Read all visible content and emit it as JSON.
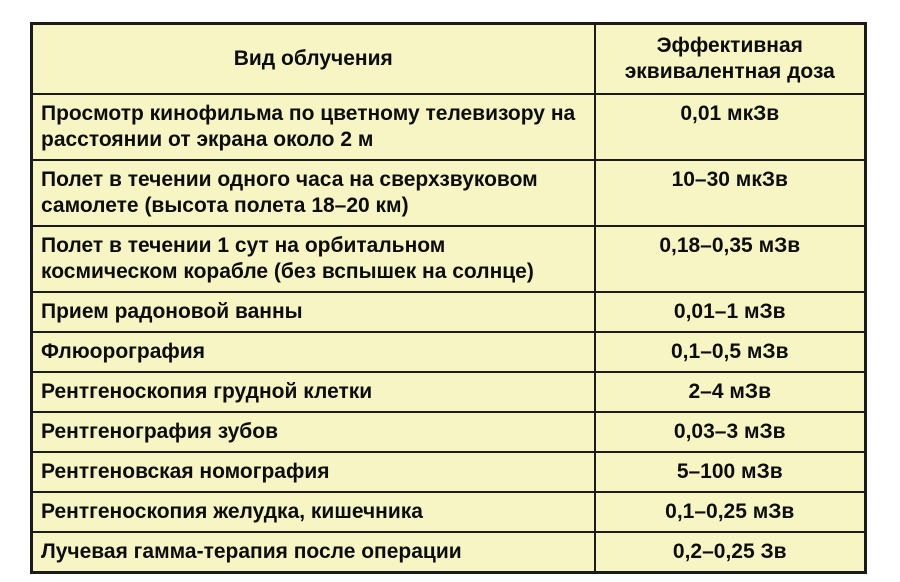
{
  "colors": {
    "cell_background": "#f6f5c3",
    "border": "#1b1b1b",
    "text": "#0d0d0d",
    "page_background": "#ffffff"
  },
  "table": {
    "header": {
      "type_label": "Вид облучения",
      "dose_label": "Эффективная эквивалентная доза"
    },
    "rows": [
      {
        "type": "Просмотр кинофильма по цветному телевизору на расстоянии от экрана около 2 м",
        "dose": "0,01 мкЗв"
      },
      {
        "type": "Полет в течении одного часа на сверхзвуковом самолете (высота полета 18–20 км)",
        "dose": "10–30 мкЗв"
      },
      {
        "type": "Полет в течении 1 сут на орбитальном космическом корабле (без вспышек на солнце)",
        "dose": "0,18–0,35 мЗв"
      },
      {
        "type": "Прием радоновой ванны",
        "dose": "0,01–1 мЗв"
      },
      {
        "type": "Флюорография",
        "dose": "0,1–0,5 мЗв"
      },
      {
        "type": "Рентгеноскопия грудной клетки",
        "dose": "2–4 мЗв"
      },
      {
        "type": "Рентгенография зубов",
        "dose": "0,03–3 мЗв"
      },
      {
        "type": "Рентгеновская номография",
        "dose": "5–100 мЗв"
      },
      {
        "type": "Рентгеноскопия желудка, кишечника",
        "dose": "0,1–0,25 мЗв"
      },
      {
        "type": "Лучевая гамма-терапия после операции",
        "dose": "0,2–0,25 Зв"
      }
    ]
  }
}
